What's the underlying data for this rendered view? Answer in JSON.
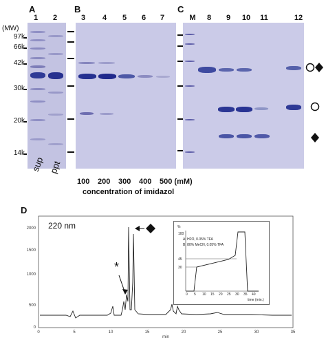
{
  "panel_labels": {
    "a": "A",
    "b": "B",
    "c": "C",
    "d": "D"
  },
  "lanes_a": [
    "1",
    "2"
  ],
  "lanes_b": [
    "3",
    "4",
    "5",
    "6",
    "7"
  ],
  "lanes_c": [
    "M",
    "8",
    "9",
    "10",
    "11",
    "12"
  ],
  "mw_header": "(MW)",
  "mw_markers": [
    "97k",
    "66k",
    "42k",
    "30k",
    "20k",
    "14k"
  ],
  "sample_labels": {
    "sup": "sup",
    "ppt": "ppt"
  },
  "imidazol_values": [
    "100",
    "200",
    "300",
    "400",
    "500 (mM)"
  ],
  "imidazol_caption": "concentration of imidazol",
  "chromatogram": {
    "wavelength": "220 nm",
    "star": "*",
    "y_ticks": [
      "0",
      "500",
      "1000",
      "1500",
      "2000"
    ],
    "x_ticks": [
      "0",
      "5",
      "10",
      "15",
      "20",
      "25",
      "30",
      "35"
    ],
    "x_unit": "min",
    "inset": {
      "y_unit": "%",
      "legend_a": "A: H2O, 0.05% TFA",
      "legend_b": "B: 80% MeCN, 0.05% TFA",
      "y_ticks": [
        "100",
        "45",
        "30"
      ],
      "x_ticks": [
        "0",
        "5",
        "10",
        "15",
        "20",
        "25",
        "30",
        "35",
        "40"
      ],
      "x_label": "time (min.)"
    }
  }
}
